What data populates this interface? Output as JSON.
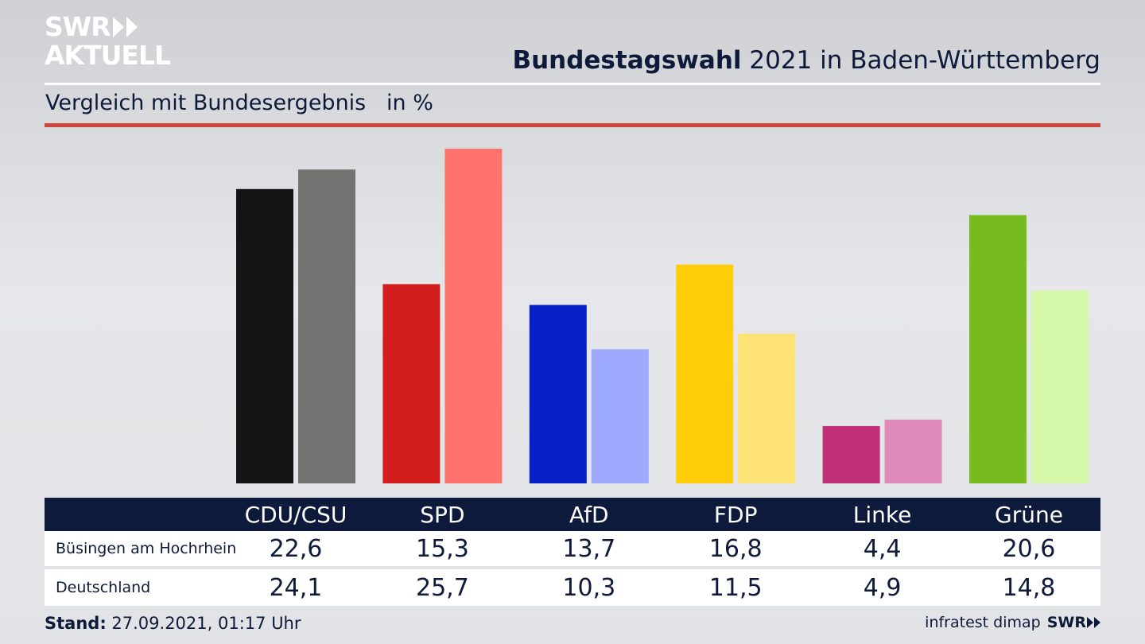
{
  "brand": {
    "logo_line1": "SWR",
    "logo_line2": "AKTUELL",
    "footer_logo": "SWR"
  },
  "header": {
    "title_bold": "Bundestagswahl",
    "title_rest": "2021 in Baden-Württemberg",
    "subtitle": "Vergleich mit Bundesergebnis",
    "unit": "in %"
  },
  "footer": {
    "stand_label": "Stand:",
    "stand_value": "27.09.2021, 01:17 Uhr",
    "source": "infratest dimap"
  },
  "colors": {
    "accent_red": "#d0473b",
    "navy": "#0d1a3c"
  },
  "chart_data": {
    "type": "bar",
    "categories": [
      "CDU/CSU",
      "SPD",
      "AfD",
      "FDP",
      "Linke",
      "Grüne"
    ],
    "series": [
      {
        "name": "Büsingen am Hochrhein",
        "values": [
          22.6,
          15.3,
          13.7,
          16.8,
          4.4,
          20.6
        ],
        "display": [
          "22,6",
          "15,3",
          "13,7",
          "16,8",
          "4,4",
          "20,6"
        ],
        "colors": [
          "#141414",
          "#d41e1e",
          "#0520c4",
          "#ffcc0a",
          "#bf2e77",
          "#78bb1e"
        ]
      },
      {
        "name": "Deutschland",
        "values": [
          24.1,
          25.7,
          10.3,
          11.5,
          4.9,
          14.8
        ],
        "display": [
          "24,1",
          "25,7",
          "10,3",
          "11,5",
          "4,9",
          "14,8"
        ],
        "colors": [
          "#737270",
          "#ff736e",
          "#9daafd",
          "#ffe276",
          "#e08aba",
          "#d4f8a8"
        ]
      }
    ],
    "ylim": [
      0,
      25.7
    ]
  }
}
